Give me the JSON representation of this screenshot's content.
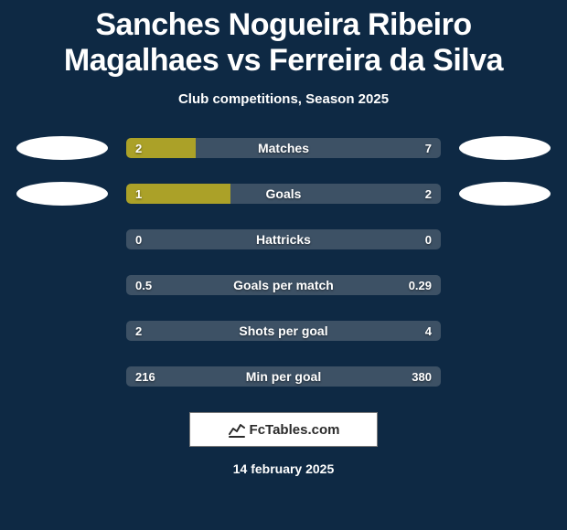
{
  "background_color": "#0e2944",
  "text_color": "#ffffff",
  "title": "Sanches Nogueira Ribeiro Magalhaes vs Ferreira da Silva",
  "title_fontsize": 34,
  "subtitle": "Club competitions, Season 2025",
  "subtitle_fontsize": 15,
  "oval_color": "#ffffff",
  "left_bar_color": "#aba128",
  "right_bar_color": "#3d5165",
  "bar_value_fontsize": 13,
  "bar_label_fontsize": 14,
  "bar_text_color": "#ffffff",
  "bars": [
    {
      "label": "Matches",
      "left_val": "2",
      "right_val": "7",
      "left_pct": 22,
      "has_ovals": true
    },
    {
      "label": "Goals",
      "left_val": "1",
      "right_val": "2",
      "left_pct": 33,
      "has_ovals": true
    },
    {
      "label": "Hattricks",
      "left_val": "0",
      "right_val": "0",
      "left_pct": 0,
      "has_ovals": false
    },
    {
      "label": "Goals per match",
      "left_val": "0.5",
      "right_val": "0.29",
      "left_pct": 0,
      "has_ovals": false
    },
    {
      "label": "Shots per goal",
      "left_val": "2",
      "right_val": "4",
      "left_pct": 0,
      "has_ovals": false
    },
    {
      "label": "Min per goal",
      "left_val": "216",
      "right_val": "380",
      "left_pct": 0,
      "has_ovals": false
    }
  ],
  "attribution": {
    "text": "FcTables.com",
    "fontsize": 15,
    "background_color": "#ffffff",
    "text_color": "#2b2b2b",
    "border_color": "#7a7a7a"
  },
  "date": "14 february 2025",
  "date_fontsize": 14
}
